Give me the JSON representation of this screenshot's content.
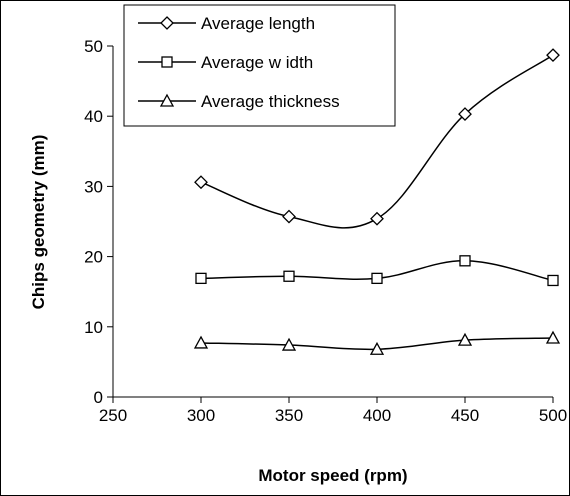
{
  "chart_data": {
    "type": "line",
    "title": "",
    "xlabel": "Motor speed (rpm)",
    "ylabel": "Chips geometry (mm)",
    "xlim": [
      250,
      500
    ],
    "ylim": [
      0,
      50
    ],
    "xticks": [
      250,
      300,
      350,
      400,
      450,
      500
    ],
    "yticks": [
      0,
      10,
      20,
      30,
      40,
      50
    ],
    "grid": false,
    "legend_position": "top-left",
    "x": [
      300,
      350,
      400,
      450,
      500
    ],
    "series": [
      {
        "name": "Average length",
        "marker": "diamond",
        "values": [
          30.6,
          25.7,
          25.4,
          40.3,
          48.7
        ]
      },
      {
        "name": "Average w idth",
        "marker": "square",
        "values": [
          16.9,
          17.2,
          16.9,
          19.4,
          16.6
        ]
      },
      {
        "name": "Average thickness",
        "marker": "triangle",
        "values": [
          7.7,
          7.4,
          6.8,
          8.1,
          8.4
        ]
      }
    ],
    "line_color": "#000000",
    "marker_fill": "#ffffff"
  }
}
